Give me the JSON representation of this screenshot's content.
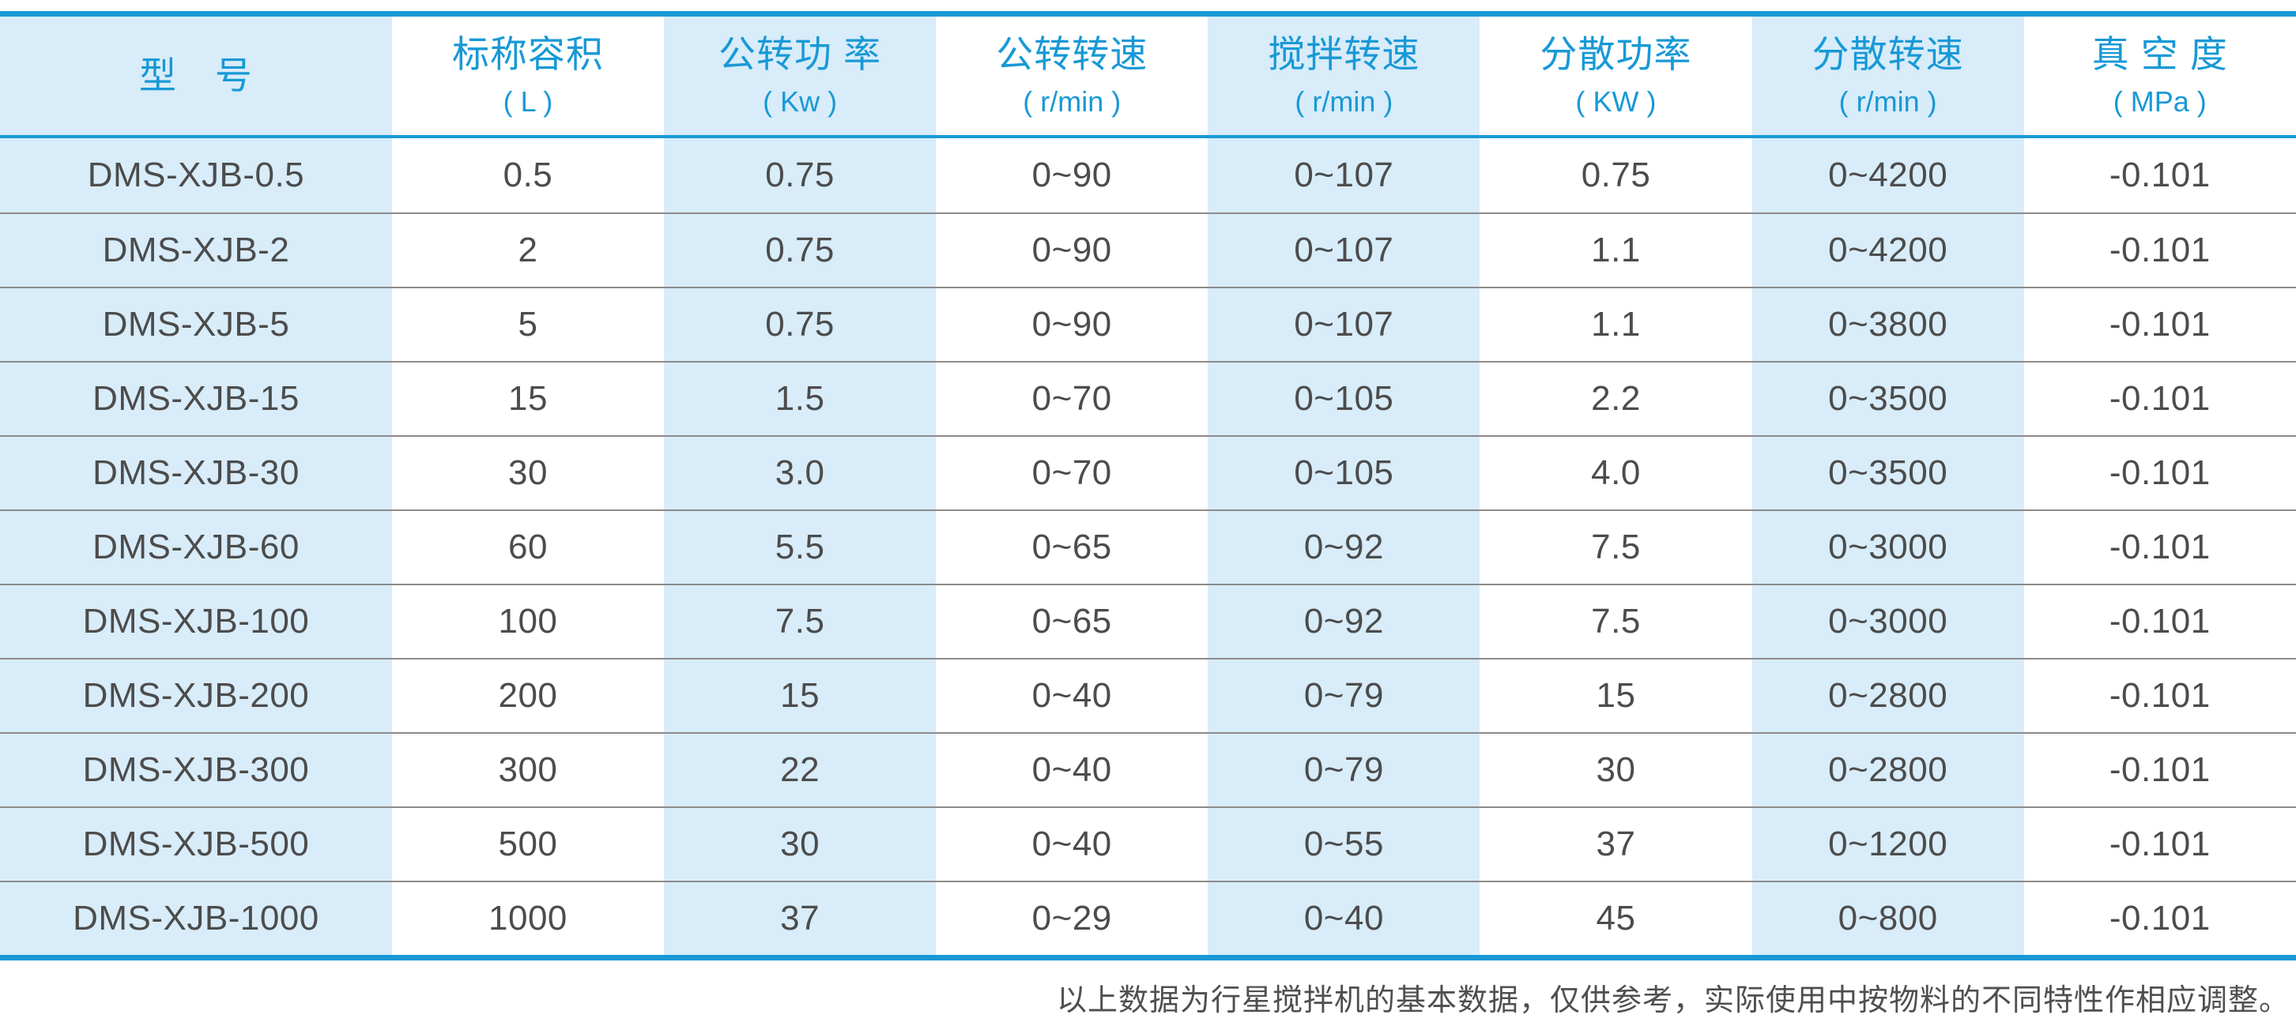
{
  "table": {
    "columns": [
      {
        "label": "型　号",
        "unit": ""
      },
      {
        "label": "标称容积",
        "unit": "( L )"
      },
      {
        "label": "公转功 率",
        "unit": "( Kw )"
      },
      {
        "label": "公转转速",
        "unit": "( r/min )"
      },
      {
        "label": "搅拌转速",
        "unit": "( r/min )"
      },
      {
        "label": "分散功率",
        "unit": "( KW )"
      },
      {
        "label": "分散转速",
        "unit": "( r/min )"
      },
      {
        "label": "真 空 度",
        "unit": "( MPa )"
      }
    ],
    "rows": [
      [
        "DMS-XJB-0.5",
        "0.5",
        "0.75",
        "0~90",
        "0~107",
        "0.75",
        "0~4200",
        "-0.101"
      ],
      [
        "DMS-XJB-2",
        "2",
        "0.75",
        "0~90",
        "0~107",
        "1.1",
        "0~4200",
        "-0.101"
      ],
      [
        "DMS-XJB-5",
        "5",
        "0.75",
        "0~90",
        "0~107",
        "1.1",
        "0~3800",
        "-0.101"
      ],
      [
        "DMS-XJB-15",
        "15",
        "1.5",
        "0~70",
        "0~105",
        "2.2",
        "0~3500",
        "-0.101"
      ],
      [
        "DMS-XJB-30",
        "30",
        "3.0",
        "0~70",
        "0~105",
        "4.0",
        "0~3500",
        "-0.101"
      ],
      [
        "DMS-XJB-60",
        "60",
        "5.5",
        "0~65",
        "0~92",
        "7.5",
        "0~3000",
        "-0.101"
      ],
      [
        "DMS-XJB-100",
        "100",
        "7.5",
        "0~65",
        "0~92",
        "7.5",
        "0~3000",
        "-0.101"
      ],
      [
        "DMS-XJB-200",
        "200",
        "15",
        "0~40",
        "0~79",
        "15",
        "0~2800",
        "-0.101"
      ],
      [
        "DMS-XJB-300",
        "300",
        "22",
        "0~40",
        "0~79",
        "30",
        "0~2800",
        "-0.101"
      ],
      [
        "DMS-XJB-500",
        "500",
        "30",
        "0~40",
        "0~55",
        "37",
        "0~1200",
        "-0.101"
      ],
      [
        "DMS-XJB-1000",
        "1000",
        "37",
        "0~29",
        "0~40",
        "45",
        "0~800",
        "-0.101"
      ]
    ]
  },
  "footer": {
    "note": "以上数据为行星搅拌机的基本数据，仅供参考，实际使用中按物料的不同特性作相应调整。"
  },
  "colors": {
    "accent_blue": "#1899d6",
    "column_tint": "#d8ecf9",
    "data_text": "#4c4c4c",
    "separator_gray": "#8b8b8b",
    "footnote_text": "#4f4f4f"
  }
}
